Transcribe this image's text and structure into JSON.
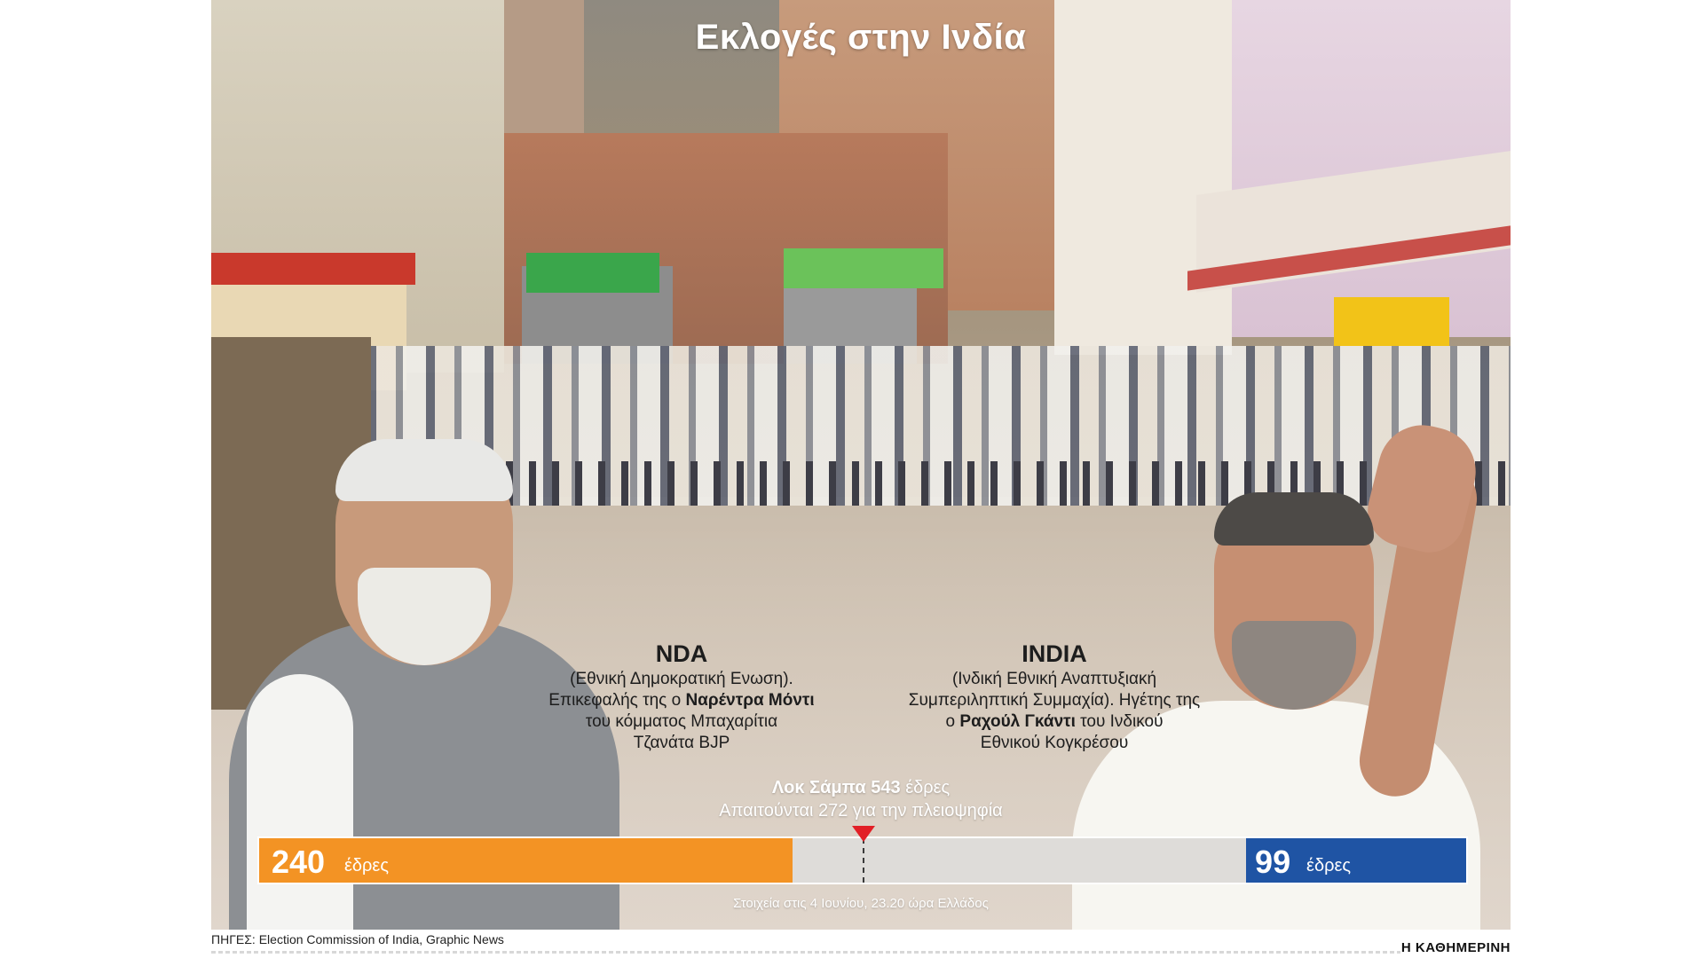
{
  "title": "Εκλογές στην Ινδία",
  "nda": {
    "name": "NDA",
    "line1": "(Εθνική Δημοκρατική Ενωση).",
    "line2_pre": "Επικεφαλής της ο ",
    "line2_bold": "Ναρέντρα Μόντι",
    "line3": "του κόμματος Μπαχαρίτια",
    "line4": "Τζανάτα BJP"
  },
  "india": {
    "name": "INDIA",
    "line1": "(Ινδική Εθνική Αναπτυξιακή",
    "line2": "Συμπεριληπτική Συμμαχία). Ηγέτης της",
    "line3_pre": "ο ",
    "line3_bold": "Ραχούλ Γκάντι",
    "line3_post": " του Ινδικού",
    "line4": "Εθνικού Κογκρέσου"
  },
  "lok_sabha": {
    "name": "Λοκ Σάμπα",
    "seats": "543",
    "seats_label": "έδρες",
    "majority_text": "Απαιτούνται 272 για την πλειοψηφία"
  },
  "seat_bar": {
    "total": 543,
    "majority": 272,
    "nda_seats": 240,
    "nda_label": "έδρες",
    "nda_color": "#f39324",
    "india_seats": 99,
    "india_label": "έδρες",
    "india_color": "#1f54a4",
    "marker_color": "#e21f26"
  },
  "footnote": "Στοιχεία στις 4 Ιουνίου, 23.20 ώρα Ελλάδος",
  "source": "ΠΗΓΕΣ: Election Commission of India, Graphic News",
  "brand": "Η ΚΑΘΗΜΕΡΙΝΗ"
}
